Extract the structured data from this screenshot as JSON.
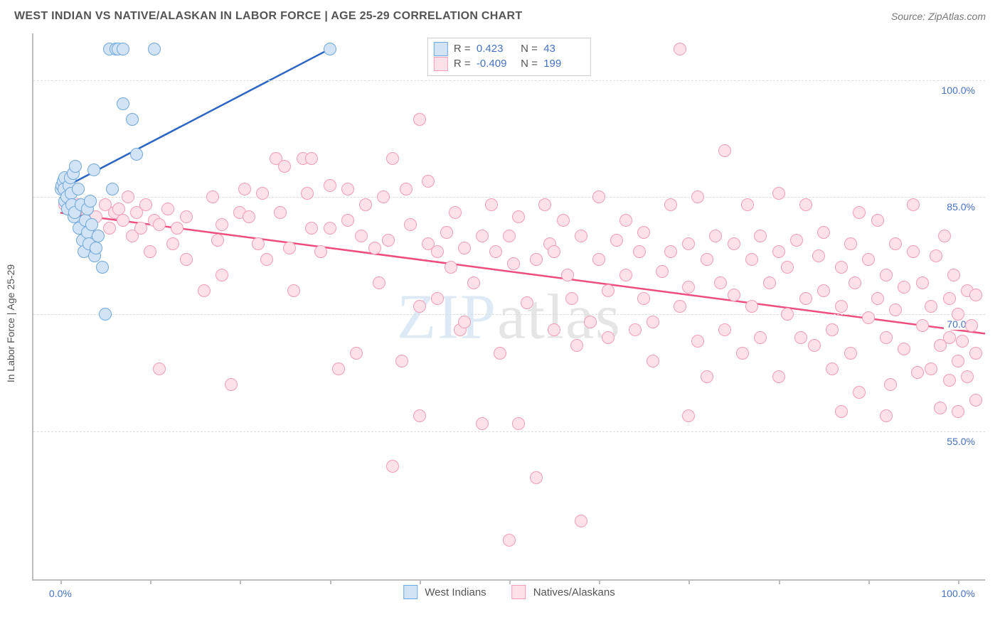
{
  "header": {
    "title": "WEST INDIAN VS NATIVE/ALASKAN IN LABOR FORCE | AGE 25-29 CORRELATION CHART",
    "source": "Source: ZipAtlas.com"
  },
  "ylabel": "In Labor Force | Age 25-29",
  "watermark": "ZIPatlas",
  "chart": {
    "type": "scatter",
    "background_color": "#ffffff",
    "grid_color": "#dddddd",
    "axis_color": "#bdbdbd",
    "tick_color": "#4472c4",
    "xlim": [
      -3,
      103
    ],
    "ylim": [
      36,
      106
    ],
    "x_ticks": [
      0,
      10,
      20,
      30,
      40,
      50,
      60,
      70,
      80,
      90,
      100
    ],
    "x_tick_labels": {
      "0": "0.0%",
      "100": "100.0%"
    },
    "y_gridlines": [
      55,
      70,
      85,
      100
    ],
    "y_tick_labels": {
      "55": "55.0%",
      "70": "70.0%",
      "85": "85.0%",
      "100": "100.0%"
    },
    "marker_radius": 9,
    "marker_border_width": 1.5,
    "series": [
      {
        "name": "West Indians",
        "fill": "#d2e3f5",
        "stroke": "#6fa8dc",
        "line_color": "#2b66c4",
        "line_width": 2.5,
        "stats": {
          "R": "0.423",
          "N": "43"
        },
        "trend": {
          "x1": 0,
          "y1": 86,
          "x2": 30,
          "y2": 104
        },
        "points": [
          [
            0.1,
            86
          ],
          [
            0.2,
            86.5
          ],
          [
            0.3,
            87
          ],
          [
            0.4,
            86
          ],
          [
            0.5,
            84.5
          ],
          [
            0.5,
            87.5
          ],
          [
            0.7,
            85
          ],
          [
            0.8,
            83.5
          ],
          [
            1.0,
            86.5
          ],
          [
            1.1,
            87.5
          ],
          [
            1.2,
            85.5
          ],
          [
            1.3,
            84
          ],
          [
            1.4,
            88
          ],
          [
            1.5,
            82.5
          ],
          [
            1.6,
            83
          ],
          [
            1.7,
            89
          ],
          [
            2.0,
            86
          ],
          [
            2.1,
            81
          ],
          [
            2.3,
            84
          ],
          [
            2.5,
            79.5
          ],
          [
            2.6,
            78
          ],
          [
            2.8,
            82
          ],
          [
            3.0,
            80.5
          ],
          [
            3.0,
            83.5
          ],
          [
            3.2,
            79
          ],
          [
            3.3,
            84.5
          ],
          [
            3.5,
            81.5
          ],
          [
            3.8,
            77.5
          ],
          [
            4.0,
            78.5
          ],
          [
            4.2,
            80
          ],
          [
            4.7,
            76
          ],
          [
            5.0,
            70
          ],
          [
            5.5,
            104
          ],
          [
            5.8,
            86
          ],
          [
            6.2,
            104
          ],
          [
            6.4,
            104
          ],
          [
            7.0,
            104
          ],
          [
            8.0,
            95
          ],
          [
            8.5,
            90.5
          ],
          [
            10.5,
            104
          ],
          [
            7.0,
            97
          ],
          [
            3.7,
            88.5
          ],
          [
            30,
            104
          ]
        ]
      },
      {
        "name": "Natives/Alaskans",
        "fill": "#fce1e8",
        "stroke": "#f19db5",
        "line_color": "#ed4e7e",
        "line_width": 2.5,
        "stats": {
          "R": "-0.409",
          "N": "199"
        },
        "trend": {
          "x1": 0,
          "y1": 83,
          "x2": 103,
          "y2": 67.5
        },
        "points": [
          [
            0.5,
            84
          ],
          [
            2,
            84
          ],
          [
            3,
            83
          ],
          [
            3.5,
            80
          ],
          [
            4,
            82.5
          ],
          [
            5,
            84
          ],
          [
            5.5,
            81
          ],
          [
            6,
            83
          ],
          [
            6.5,
            83.5
          ],
          [
            7,
            82
          ],
          [
            7.5,
            85
          ],
          [
            8,
            80
          ],
          [
            8.5,
            83
          ],
          [
            9,
            81
          ],
          [
            9.5,
            84
          ],
          [
            10,
            78
          ],
          [
            10.5,
            82
          ],
          [
            11,
            81.5
          ],
          [
            11,
            63
          ],
          [
            12,
            83.5
          ],
          [
            12.5,
            79
          ],
          [
            13,
            81
          ],
          [
            14,
            82.5
          ],
          [
            14,
            77
          ],
          [
            16,
            73
          ],
          [
            17,
            85
          ],
          [
            17.5,
            79.5
          ],
          [
            18,
            81.5
          ],
          [
            18,
            75
          ],
          [
            19,
            61
          ],
          [
            20,
            83
          ],
          [
            20.5,
            86
          ],
          [
            21,
            82.5
          ],
          [
            22,
            79
          ],
          [
            22.5,
            85.5
          ],
          [
            23,
            77
          ],
          [
            24,
            90
          ],
          [
            24.5,
            83
          ],
          [
            25,
            89
          ],
          [
            25.5,
            78.5
          ],
          [
            26,
            73
          ],
          [
            27,
            90
          ],
          [
            27.5,
            85.5
          ],
          [
            28,
            81
          ],
          [
            28,
            90
          ],
          [
            29,
            78
          ],
          [
            30,
            86.5
          ],
          [
            30,
            81
          ],
          [
            31,
            63
          ],
          [
            32,
            82
          ],
          [
            32,
            86
          ],
          [
            33,
            65
          ],
          [
            33.5,
            80
          ],
          [
            34,
            84
          ],
          [
            35,
            78.5
          ],
          [
            35.5,
            74
          ],
          [
            36,
            85
          ],
          [
            36.5,
            79.5
          ],
          [
            37,
            90
          ],
          [
            37,
            50.5
          ],
          [
            38,
            64
          ],
          [
            38.5,
            86
          ],
          [
            39,
            81.5
          ],
          [
            40,
            95
          ],
          [
            40,
            57
          ],
          [
            41,
            79
          ],
          [
            41,
            87
          ],
          [
            42,
            78
          ],
          [
            42,
            72
          ],
          [
            43,
            80.5
          ],
          [
            43.5,
            76
          ],
          [
            44,
            83
          ],
          [
            44.5,
            68
          ],
          [
            45,
            78.5
          ],
          [
            46,
            74
          ],
          [
            47,
            80
          ],
          [
            47,
            56
          ],
          [
            48,
            84
          ],
          [
            48.5,
            78
          ],
          [
            49,
            65
          ],
          [
            50,
            80
          ],
          [
            50,
            41
          ],
          [
            50.5,
            76.5
          ],
          [
            51,
            82.5
          ],
          [
            51,
            56
          ],
          [
            52,
            71.5
          ],
          [
            53,
            77
          ],
          [
            53,
            49
          ],
          [
            54,
            84
          ],
          [
            54.5,
            79
          ],
          [
            55,
            68
          ],
          [
            55,
            78
          ],
          [
            56,
            82
          ],
          [
            56.5,
            75
          ],
          [
            57,
            72
          ],
          [
            57.5,
            66
          ],
          [
            58,
            80
          ],
          [
            58,
            43.5
          ],
          [
            59,
            69
          ],
          [
            60,
            77
          ],
          [
            60,
            85
          ],
          [
            61,
            73
          ],
          [
            61,
            67
          ],
          [
            62,
            79.5
          ],
          [
            63,
            75
          ],
          [
            63,
            82
          ],
          [
            64,
            68
          ],
          [
            64.5,
            78
          ],
          [
            65,
            72
          ],
          [
            65,
            80.5
          ],
          [
            66,
            69
          ],
          [
            66,
            64
          ],
          [
            67,
            75.5
          ],
          [
            68,
            78
          ],
          [
            68,
            84
          ],
          [
            69,
            71
          ],
          [
            69,
            104
          ],
          [
            70,
            73.5
          ],
          [
            70,
            79
          ],
          [
            71,
            66.5
          ],
          [
            71,
            85
          ],
          [
            72,
            77
          ],
          [
            72,
            62
          ],
          [
            73,
            80
          ],
          [
            73.5,
            74
          ],
          [
            74,
            68
          ],
          [
            74,
            91
          ],
          [
            75,
            72.5
          ],
          [
            75,
            79
          ],
          [
            76,
            65
          ],
          [
            76.5,
            84
          ],
          [
            77,
            71
          ],
          [
            77,
            77
          ],
          [
            78,
            67
          ],
          [
            78,
            80
          ],
          [
            79,
            74
          ],
          [
            80,
            78
          ],
          [
            80,
            85.5
          ],
          [
            80,
            62
          ],
          [
            81,
            70
          ],
          [
            81,
            76
          ],
          [
            82,
            79.5
          ],
          [
            82.5,
            67
          ],
          [
            83,
            72
          ],
          [
            83,
            84
          ],
          [
            84,
            66
          ],
          [
            84.5,
            77.5
          ],
          [
            85,
            73
          ],
          [
            85,
            80.5
          ],
          [
            86,
            68
          ],
          [
            86,
            63
          ],
          [
            87,
            76
          ],
          [
            87,
            71
          ],
          [
            88,
            65
          ],
          [
            88,
            79
          ],
          [
            88.5,
            74
          ],
          [
            89,
            83
          ],
          [
            89,
            60
          ],
          [
            90,
            69.5
          ],
          [
            90,
            77
          ],
          [
            91,
            72
          ],
          [
            91,
            82
          ],
          [
            92,
            67
          ],
          [
            92,
            75
          ],
          [
            92.5,
            61
          ],
          [
            93,
            70.5
          ],
          [
            93,
            79
          ],
          [
            94,
            65.5
          ],
          [
            94,
            73.5
          ],
          [
            95,
            78
          ],
          [
            95,
            84
          ],
          [
            95.5,
            62.5
          ],
          [
            96,
            68.5
          ],
          [
            96,
            74
          ],
          [
            97,
            71
          ],
          [
            97,
            63
          ],
          [
            97.5,
            77.5
          ],
          [
            98,
            66
          ],
          [
            98,
            58
          ],
          [
            98.5,
            80
          ],
          [
            99,
            72
          ],
          [
            99,
            67
          ],
          [
            99,
            61.5
          ],
          [
            99.5,
            75
          ],
          [
            100,
            64
          ],
          [
            100,
            70
          ],
          [
            100,
            57.5
          ],
          [
            100.5,
            66.5
          ],
          [
            101,
            73
          ],
          [
            101,
            62
          ],
          [
            101.5,
            68.5
          ],
          [
            102,
            65
          ],
          [
            102,
            59
          ],
          [
            102,
            72.5
          ],
          [
            92,
            57
          ],
          [
            87,
            57.5
          ],
          [
            70,
            57
          ],
          [
            40,
            71
          ],
          [
            45,
            69
          ]
        ]
      }
    ]
  },
  "bottom_legend": [
    {
      "label": "West Indians",
      "fill": "#d2e3f5",
      "stroke": "#6fa8dc"
    },
    {
      "label": "Natives/Alaskans",
      "fill": "#fce1e8",
      "stroke": "#f19db5"
    }
  ]
}
